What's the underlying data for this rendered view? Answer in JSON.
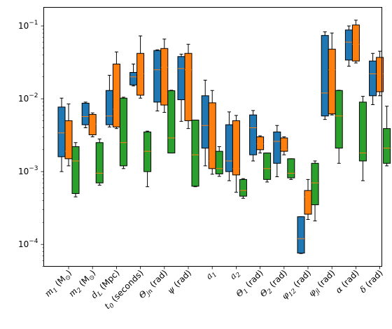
{
  "chart_data": {
    "type": "box",
    "yscale": "log",
    "ylim": [
      5e-05,
      0.18
    ],
    "y_ticks": [
      {
        "value": 0.1,
        "base": "10",
        "exp": "−1"
      },
      {
        "value": 0.01,
        "base": "10",
        "exp": "−2"
      },
      {
        "value": 0.001,
        "base": "10",
        "exp": "−3"
      },
      {
        "value": 0.0001,
        "base": "10",
        "exp": "−4"
      }
    ],
    "categories": [
      {
        "main": "m",
        "sub": "1",
        "rest": " (M",
        "sun": "⊙",
        "close": ")"
      },
      {
        "main": "m",
        "sub": "2",
        "rest": " (M",
        "sun": "⊙",
        "close": ")"
      },
      {
        "main": "d",
        "sub": "L",
        "rest": " (Mpc)",
        "sun": "",
        "close": ""
      },
      {
        "main": "t",
        "sub": "0",
        "rest": " (seconds)",
        "sun": "",
        "close": ""
      },
      {
        "main": "Θ",
        "sub": "jn",
        "rest": " (rad)",
        "sun": "",
        "close": ""
      },
      {
        "main": "ψ",
        "sub": "",
        "rest": " (rad)",
        "sun": "",
        "close": ""
      },
      {
        "main": "a",
        "sub": "1",
        "rest": "",
        "sun": "",
        "close": ""
      },
      {
        "main": "a",
        "sub": "2",
        "rest": "",
        "sun": "",
        "close": ""
      },
      {
        "main": "Θ",
        "sub": "1",
        "rest": " (rad)",
        "sun": "",
        "close": ""
      },
      {
        "main": "Θ",
        "sub": "2",
        "rest": " (rad)",
        "sun": "",
        "close": ""
      },
      {
        "main": "φ",
        "sub": "12",
        "rest": " (rad)",
        "sun": "",
        "close": ""
      },
      {
        "main": "φ",
        "sub": "jl",
        "rest": " (rad)",
        "sun": "",
        "close": ""
      },
      {
        "main": "α",
        "sub": "",
        "rest": " (rad)",
        "sun": "",
        "close": ""
      },
      {
        "main": "δ",
        "sub": "",
        "rest": " (rad)",
        "sun": "",
        "close": ""
      }
    ],
    "series": [
      {
        "color": "#1f77b4",
        "median_color": "#ff7f0e",
        "boxes": [
          {
            "whislo": 0.001,
            "q1": 0.0016,
            "med": 0.0034,
            "q3": 0.0077,
            "whishi": 0.0102
          },
          {
            "whislo": 0.004,
            "q1": 0.0044,
            "med": 0.0057,
            "q3": 0.0087,
            "whishi": 0.009
          },
          {
            "whislo": 0.0041,
            "q1": 0.0044,
            "med": 0.0058,
            "q3": 0.013,
            "whishi": 0.021
          },
          {
            "whislo": 0.015,
            "q1": 0.0155,
            "med": 0.02,
            "q3": 0.023,
            "whishi": 0.03
          },
          {
            "whislo": 0.0068,
            "q1": 0.009,
            "med": 0.025,
            "q3": 0.046,
            "whishi": 0.047
          },
          {
            "whislo": 0.0049,
            "q1": 0.0097,
            "med": 0.026,
            "q3": 0.038,
            "whishi": 0.041
          },
          {
            "whislo": 0.0012,
            "q1": 0.0021,
            "med": 0.0043,
            "q3": 0.011,
            "whishi": 0.018
          },
          {
            "whislo": 0.00075,
            "q1": 0.001,
            "med": 0.0014,
            "q3": 0.0044,
            "whishi": 0.0066
          },
          {
            "whislo": 0.0014,
            "q1": 0.0017,
            "med": 0.004,
            "q3": 0.006,
            "whishi": 0.0069
          },
          {
            "whislo": 0.00085,
            "q1": 0.0013,
            "med": 0.0026,
            "q3": 0.0035,
            "whishi": 0.0043
          },
          {
            "whislo": 7.5e-05,
            "q1": 7.6e-05,
            "med": 0.00012,
            "q3": 0.00024,
            "whishi": 0.00024
          },
          {
            "whislo": 0.0052,
            "q1": 0.0058,
            "med": 0.012,
            "q3": 0.074,
            "whishi": 0.083
          },
          {
            "whislo": 0.028,
            "q1": 0.034,
            "med": 0.06,
            "q3": 0.088,
            "whishi": 0.1
          },
          {
            "whislo": 0.0083,
            "q1": 0.011,
            "med": 0.022,
            "q3": 0.033,
            "whishi": 0.042
          }
        ]
      },
      {
        "color": "#ff7f0e",
        "median_color": "#ff7f0e",
        "boxes": [
          {
            "whislo": 0.0012,
            "q1": 0.0015,
            "med": 0.0019,
            "q3": 0.005,
            "whishi": 0.0085
          },
          {
            "whislo": 0.003,
            "q1": 0.0032,
            "med": 0.0045,
            "q3": 0.0061,
            "whishi": 0.0064
          },
          {
            "whislo": 0.0039,
            "q1": 0.0041,
            "med": 0.0072,
            "q3": 0.03,
            "whishi": 0.044
          },
          {
            "whislo": 0.0102,
            "q1": 0.0112,
            "med": 0.022,
            "q3": 0.042,
            "whishi": 0.073
          },
          {
            "whislo": 0.0065,
            "q1": 0.0082,
            "med": 0.027,
            "q3": 0.049,
            "whishi": 0.066
          },
          {
            "whislo": 0.0039,
            "q1": 0.005,
            "med": 0.025,
            "q3": 0.042,
            "whishi": 0.056
          },
          {
            "whislo": 0.00092,
            "q1": 0.0011,
            "med": 0.0014,
            "q3": 0.0088,
            "whishi": 0.013
          },
          {
            "whislo": 0.00052,
            "q1": 0.0009,
            "med": 0.0011,
            "q3": 0.005,
            "whishi": 0.0059
          },
          {
            "whislo": 0.0018,
            "q1": 0.002,
            "med": 0.0024,
            "q3": 0.003,
            "whishi": 0.0031
          },
          {
            "whislo": 0.0017,
            "q1": 0.0019,
            "med": 0.002,
            "q3": 0.0029,
            "whishi": 0.003
          },
          {
            "whislo": 0.00022,
            "q1": 0.00026,
            "med": 0.00045,
            "q3": 0.00055,
            "whishi": 0.00078
          },
          {
            "whislo": 0.006,
            "q1": 0.0062,
            "med": 0.025,
            "q3": 0.048,
            "whishi": 0.08
          },
          {
            "whislo": 0.031,
            "q1": 0.033,
            "med": 0.056,
            "q3": 0.103,
            "whishi": 0.12
          },
          {
            "whislo": 0.011,
            "q1": 0.0125,
            "med": 0.022,
            "q3": 0.037,
            "whishi": 0.045
          }
        ]
      },
      {
        "color": "#2ca02c",
        "median_color": "#ff7f0e",
        "boxes": [
          {
            "whislo": 0.00045,
            "q1": 0.0005,
            "med": 0.0014,
            "q3": 0.0022,
            "whishi": 0.0025
          },
          {
            "whislo": 0.00065,
            "q1": 0.0007,
            "med": 0.00095,
            "q3": 0.0025,
            "whishi": 0.0028
          },
          {
            "whislo": 0.0011,
            "q1": 0.0012,
            "med": 0.0025,
            "q3": 0.0102,
            "whishi": 0.0105
          },
          {
            "whislo": 0.00062,
            "q1": 0.001,
            "med": 0.0019,
            "q3": 0.0035,
            "whishi": 0.0036
          },
          {
            "whislo": 0.0018,
            "q1": 0.0018,
            "med": 0.0029,
            "q3": 0.0129,
            "whishi": 0.0131
          },
          {
            "whislo": 0.00062,
            "q1": 0.00063,
            "med": 0.0017,
            "q3": 0.0051,
            "whishi": 0.0051
          },
          {
            "whislo": 0.00086,
            "q1": 0.00093,
            "med": 0.0011,
            "q3": 0.0019,
            "whishi": 0.0022
          },
          {
            "whislo": 0.00043,
            "q1": 0.00046,
            "med": 0.00055,
            "q3": 0.00078,
            "whishi": 0.0008
          },
          {
            "whislo": 0.00072,
            "q1": 0.00078,
            "med": 0.0011,
            "q3": 0.0018,
            "whishi": 0.0018
          },
          {
            "whislo": 0.00078,
            "q1": 0.00082,
            "med": 0.00095,
            "q3": 0.0015,
            "whishi": 0.0015
          },
          {
            "whislo": 0.00021,
            "q1": 0.00035,
            "med": 0.0007,
            "q3": 0.0013,
            "whishi": 0.0014
          },
          {
            "whislo": 0.0013,
            "q1": 0.0021,
            "med": 0.0058,
            "q3": 0.013,
            "whishi": 0.0131
          },
          {
            "whislo": 0.00075,
            "q1": 0.0014,
            "med": 0.0018,
            "q3": 0.009,
            "whishi": 0.0108
          },
          {
            "whislo": 0.0012,
            "q1": 0.0013,
            "med": 0.0021,
            "q3": 0.0039,
            "whishi": 0.0079
          }
        ]
      }
    ]
  }
}
